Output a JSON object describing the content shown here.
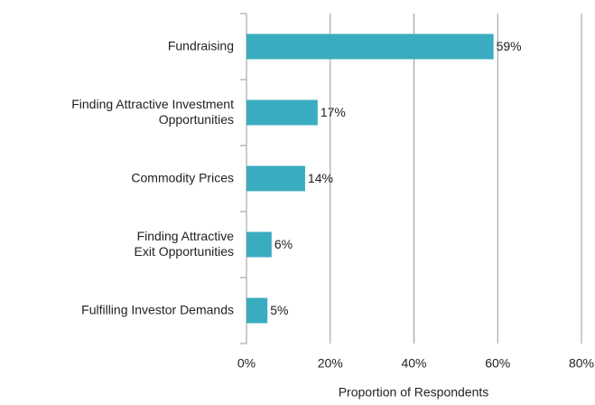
{
  "chart_data": {
    "type": "hbar",
    "categories": [
      [
        "Fundraising"
      ],
      [
        "Finding Attractive Investment",
        "Opportunities"
      ],
      [
        "Commodity Prices"
      ],
      [
        "Finding Attractive",
        "Exit Opportunities"
      ],
      [
        "Fulfilling Investor Demands"
      ]
    ],
    "values": [
      59,
      17,
      14,
      6,
      5
    ],
    "value_labels": [
      "59%",
      "17%",
      "14%",
      "6%",
      "5%"
    ],
    "color": "#3aacbf",
    "xlim": [
      0,
      80
    ],
    "xticks": [
      {
        "value": 0,
        "label": "0%"
      },
      {
        "value": 20,
        "label": "20%"
      },
      {
        "value": 40,
        "label": "40%"
      },
      {
        "value": 60,
        "label": "60%"
      },
      {
        "value": 80,
        "label": "80%"
      }
    ],
    "xlabel": "Proportion of Respondents",
    "grid": true
  }
}
